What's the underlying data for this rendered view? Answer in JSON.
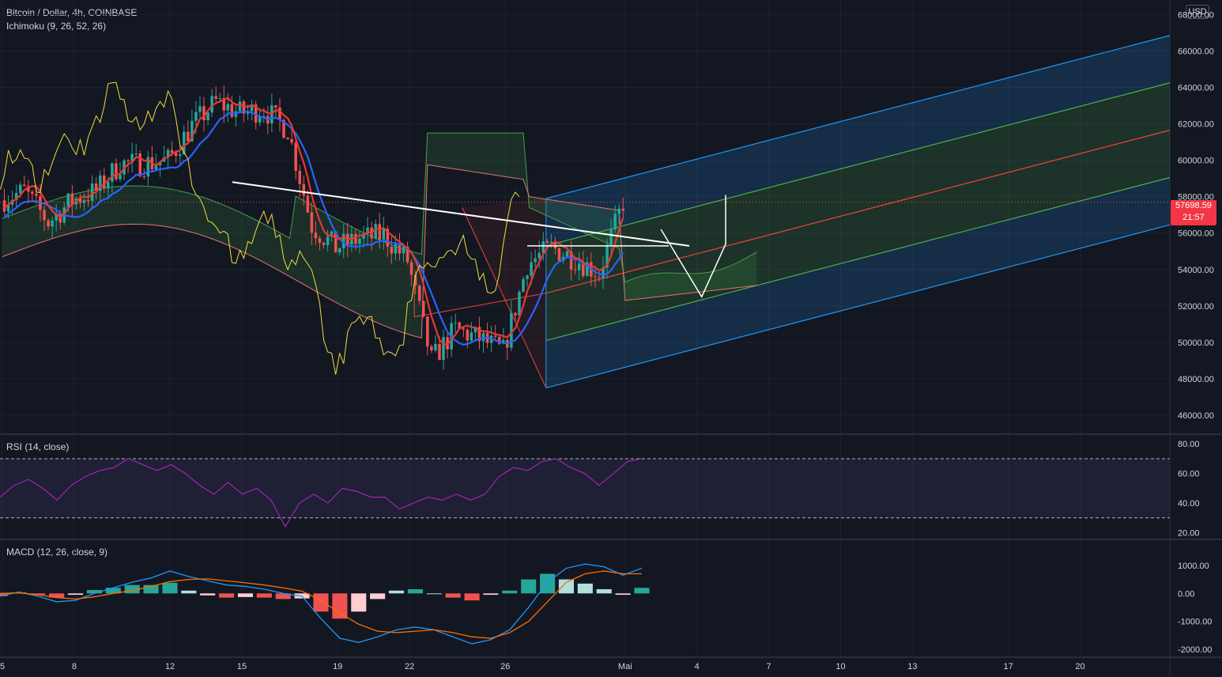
{
  "header": {
    "symbol_line": "Bitcoin / Dollar, 4h, COINBASE",
    "indicator_line": "Ichimoku (9, 26, 52, 26)",
    "currency": "USD"
  },
  "price_marker": {
    "price": "57698.59",
    "countdown": "21:57"
  },
  "colors": {
    "background": "#131722",
    "grid": "#1e222d",
    "up": "#26a69a",
    "down": "#ef5350",
    "conversion": "#2962ff",
    "base": "#e53935",
    "lagging": "#f0dc3c",
    "cloud_up": "#43a047",
    "cloud_down": "#e57373",
    "pitch_outer": "#2196f3",
    "pitch_inner": "#4caf50",
    "pitch_median": "#f44336",
    "rsi": "#9c27b0",
    "macd": "#2196f3",
    "signal": "#ff6d00"
  },
  "chart_data": [
    {
      "panel": "price",
      "type": "candlestick",
      "title": "Bitcoin / Dollar, 4h, COINBASE",
      "indicator": "Ichimoku (9, 26, 52, 26)",
      "ylabel": "USD",
      "ylim": [
        45000,
        68800
      ],
      "y_ticks": [
        "68000.00",
        "66000.00",
        "64000.00",
        "62000.00",
        "60000.00",
        "58000.00",
        "56000.00",
        "54000.00",
        "52000.00",
        "50000.00",
        "48000.00",
        "46000.00"
      ],
      "x_ticks": [
        "5",
        "8",
        "12",
        "15",
        "19",
        "22",
        "26",
        "Mai",
        "4",
        "7",
        "10",
        "13",
        "17",
        "20"
      ],
      "path_points": [
        {
          "date": "Apr 05",
          "close": 57800
        },
        {
          "date": "Apr 06",
          "close": 58300
        },
        {
          "date": "Apr 07",
          "close": 56600
        },
        {
          "date": "Apr 08",
          "close": 57800
        },
        {
          "date": "Apr 09",
          "close": 58300
        },
        {
          "date": "Apr 10",
          "close": 59800
        },
        {
          "date": "Apr 11",
          "close": 59800
        },
        {
          "date": "Apr 12",
          "close": 60000
        },
        {
          "date": "Apr 13",
          "close": 61900
        },
        {
          "date": "Apr 14",
          "close": 63200
        },
        {
          "date": "Apr 15",
          "close": 62600
        },
        {
          "date": "Apr 16",
          "close": 62800
        },
        {
          "date": "Apr 17",
          "close": 61700
        },
        {
          "date": "Apr 18",
          "close": 56400
        },
        {
          "date": "Apr 19",
          "close": 55200
        },
        {
          "date": "Apr 20",
          "close": 55700
        },
        {
          "date": "Apr 21",
          "close": 55900
        },
        {
          "date": "Apr 22",
          "close": 54500
        },
        {
          "date": "Apr 23",
          "close": 49000
        },
        {
          "date": "Apr 24",
          "close": 50700
        },
        {
          "date": "Apr 25",
          "close": 50200
        },
        {
          "date": "Apr 26",
          "close": 49500
        },
        {
          "date": "Apr 27",
          "close": 54300
        },
        {
          "date": "Apr 28",
          "close": 55200
        },
        {
          "date": "Apr 29",
          "close": 54600
        },
        {
          "date": "Apr 30",
          "close": 53800
        },
        {
          "date": "May 01",
          "close": 57700
        }
      ],
      "pitchfork_levels": [
        "upper",
        "upper-mid",
        "median",
        "lower-mid",
        "lower"
      ]
    },
    {
      "panel": "rsi",
      "type": "line",
      "title": "RSI (14, close)",
      "ylim": [
        16,
        86
      ],
      "y_ticks": [
        "80.00",
        "60.00",
        "40.00",
        "20.00"
      ],
      "bands": [
        70,
        30
      ],
      "values": [
        44,
        52,
        56,
        50,
        42,
        52,
        58,
        62,
        64,
        70,
        66,
        62,
        66,
        60,
        52,
        46,
        54,
        46,
        50,
        42,
        24,
        40,
        46,
        40,
        50,
        48,
        44,
        44,
        36,
        40,
        44,
        42,
        46,
        42,
        46,
        58,
        64,
        62,
        68,
        70,
        64,
        60,
        52,
        60,
        68,
        70
      ]
    },
    {
      "panel": "macd",
      "type": "bar+line",
      "title": "MACD (12, 26, close, 9)",
      "ylim": [
        -2250,
        1900
      ],
      "y_ticks": [
        "1000.00",
        "0.00",
        "-1000.00",
        "-2000.00"
      ],
      "macd": [
        -100,
        50,
        -100,
        -300,
        -250,
        0,
        200,
        400,
        550,
        800,
        600,
        450,
        300,
        250,
        150,
        0,
        -100,
        -900,
        -1600,
        -1750,
        -1550,
        -1300,
        -1200,
        -1300,
        -1550,
        -1800,
        -1650,
        -1300,
        -500,
        400,
        900,
        1050,
        950,
        650,
        900
      ],
      "signal": [
        0,
        20,
        -50,
        -150,
        -200,
        -120,
        0,
        100,
        250,
        420,
        500,
        520,
        450,
        380,
        300,
        200,
        80,
        -250,
        -700,
        -1100,
        -1350,
        -1400,
        -1350,
        -1300,
        -1400,
        -1550,
        -1600,
        -1400,
        -1000,
        -300,
        400,
        700,
        800,
        700,
        700
      ]
    }
  ]
}
